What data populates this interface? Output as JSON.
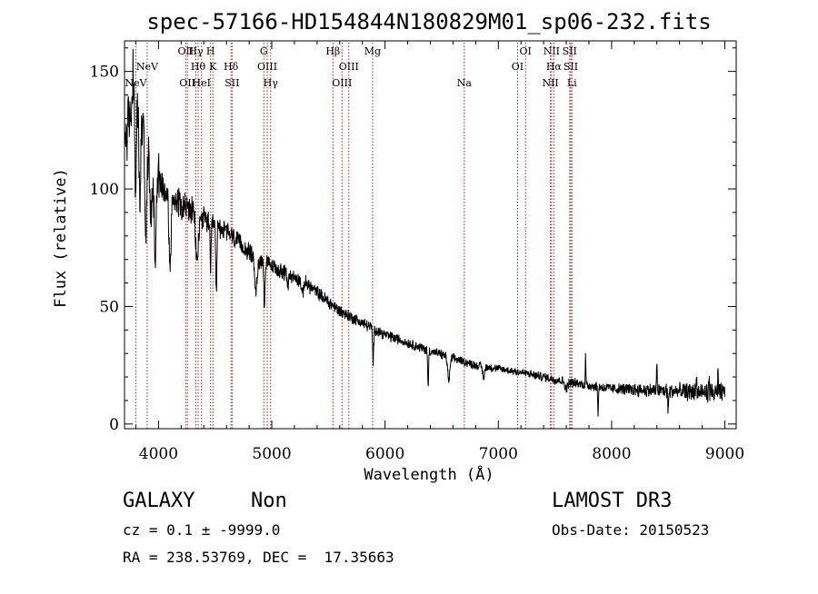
{
  "chart_data": {
    "type": "line",
    "title": "spec-57166-HD154844N180829M01_sp06-232.fits",
    "xlabel": "Wavelength (Å)",
    "ylabel": "Flux (relative)",
    "xlim": [
      3700,
      9100
    ],
    "ylim": [
      -2,
      163
    ],
    "x_ticks": [
      4000,
      5000,
      6000,
      7000,
      8000,
      9000
    ],
    "y_ticks": [
      0,
      50,
      100,
      150
    ],
    "continuum_anchors": {
      "x": [
        3700,
        3780,
        3850,
        3950,
        4050,
        4150,
        4250,
        4400,
        4600,
        4800,
        5000,
        5300,
        5600,
        6000,
        6400,
        6800,
        7200,
        7600,
        8000,
        8500,
        9000
      ],
      "y": [
        120,
        138,
        125,
        108,
        100,
        96,
        92,
        87,
        82,
        73,
        67,
        60,
        48,
        38,
        31,
        25,
        22,
        18,
        15,
        14,
        13
      ]
    },
    "absorption_features": [
      {
        "x": 3800,
        "depth": 40,
        "width": 6
      },
      {
        "x": 3835,
        "depth": 35,
        "width": 6
      },
      {
        "x": 3889,
        "depth": 40,
        "width": 8
      },
      {
        "x": 3934,
        "depth": 25,
        "width": 8
      },
      {
        "x": 3970,
        "depth": 35,
        "width": 8
      },
      {
        "x": 4102,
        "depth": 30,
        "width": 10
      },
      {
        "x": 4340,
        "depth": 20,
        "width": 12
      },
      {
        "x": 4460,
        "depth": 22,
        "width": 5
      },
      {
        "x": 4510,
        "depth": 28,
        "width": 5
      },
      {
        "x": 4861,
        "depth": 14,
        "width": 12
      },
      {
        "x": 4935,
        "depth": 18,
        "width": 5
      },
      {
        "x": 5140,
        "depth": 5,
        "width": 6
      },
      {
        "x": 5270,
        "depth": 6,
        "width": 8
      },
      {
        "x": 5895,
        "depth": 14,
        "width": 5
      },
      {
        "x": 6380,
        "depth": 16,
        "width": 4
      },
      {
        "x": 6563,
        "depth": 10,
        "width": 10
      },
      {
        "x": 6870,
        "depth": 5,
        "width": 8
      },
      {
        "x": 7600,
        "depth": 3,
        "width": 12
      },
      {
        "x": 7880,
        "depth": 12,
        "width": 3
      },
      {
        "x": 8500,
        "depth": 10,
        "width": 3
      }
    ],
    "emission_spikes": [
      {
        "x": 3775,
        "height": 22
      },
      {
        "x": 3810,
        "height": 18
      },
      {
        "x": 3865,
        "height": 15
      },
      {
        "x": 4000,
        "height": 8
      },
      {
        "x": 7770,
        "height": 12
      },
      {
        "x": 8400,
        "height": 12
      },
      {
        "x": 8750,
        "height": 8
      },
      {
        "x": 8860,
        "height": 8
      },
      {
        "x": 8940,
        "height": 9
      }
    ],
    "noise_profile": {
      "x": [
        3700,
        4000,
        4500,
        5000,
        6000,
        7000,
        8000,
        9000
      ],
      "amplitude": [
        12,
        7,
        4,
        3,
        2,
        1.5,
        2,
        4
      ]
    },
    "line_markers": [
      {
        "label": "NeV",
        "wavelength": 3800,
        "row": 3
      },
      {
        "label": "NeV",
        "wavelength": 3900,
        "row": 2
      },
      {
        "label": "OII",
        "wavelength": 4240,
        "row": 1
      },
      {
        "label": "OII",
        "wavelength": 4255,
        "row": 3
      },
      {
        "label": "Hγ",
        "wavelength": 4330,
        "row": 1
      },
      {
        "label": "Hθ",
        "wavelength": 4350,
        "row": 2
      },
      {
        "label": "HeI",
        "wavelength": 4380,
        "row": 3
      },
      {
        "label": "H",
        "wavelength": 4460,
        "row": 1
      },
      {
        "label": "K",
        "wavelength": 4480,
        "row": 2
      },
      {
        "label": "Hδ",
        "wavelength": 4640,
        "row": 2
      },
      {
        "label": "SII",
        "wavelength": 4650,
        "row": 3
      },
      {
        "label": "G",
        "wavelength": 4930,
        "row": 1
      },
      {
        "label": "OIII",
        "wavelength": 4960,
        "row": 2
      },
      {
        "label": "Hγ",
        "wavelength": 4990,
        "row": 3
      },
      {
        "label": "Hβ",
        "wavelength": 5540,
        "row": 1
      },
      {
        "label": "OIII",
        "wavelength": 5680,
        "row": 2
      },
      {
        "label": "OIII",
        "wavelength": 5620,
        "row": 3
      },
      {
        "label": "Mg",
        "wavelength": 5890,
        "row": 1
      },
      {
        "label": "Na",
        "wavelength": 6700,
        "row": 3
      },
      {
        "label": "OI",
        "wavelength": 7240,
        "row": 1
      },
      {
        "label": "OI",
        "wavelength": 7170,
        "row": 2
      },
      {
        "label": "NII",
        "wavelength": 7470,
        "row": 1
      },
      {
        "label": "Hα",
        "wavelength": 7490,
        "row": 2
      },
      {
        "label": "NII",
        "wavelength": 7460,
        "row": 3
      },
      {
        "label": "SII",
        "wavelength": 7630,
        "row": 1
      },
      {
        "label": "SII",
        "wavelength": 7640,
        "row": 2
      },
      {
        "label": "Li",
        "wavelength": 7650,
        "row": 3
      }
    ],
    "colors": {
      "spectrum": "#000000",
      "line_markers": "#b22222",
      "axes": "#000000"
    }
  },
  "info": {
    "object_class": "GALAXY",
    "subclass": "Non",
    "survey": "LAMOST DR3",
    "redshift": "cz = 0.1 ± -9999.0",
    "obs_date": "Obs-Date: 20150523",
    "coords": "RA = 238.53769, DEC =  17.35663"
  }
}
